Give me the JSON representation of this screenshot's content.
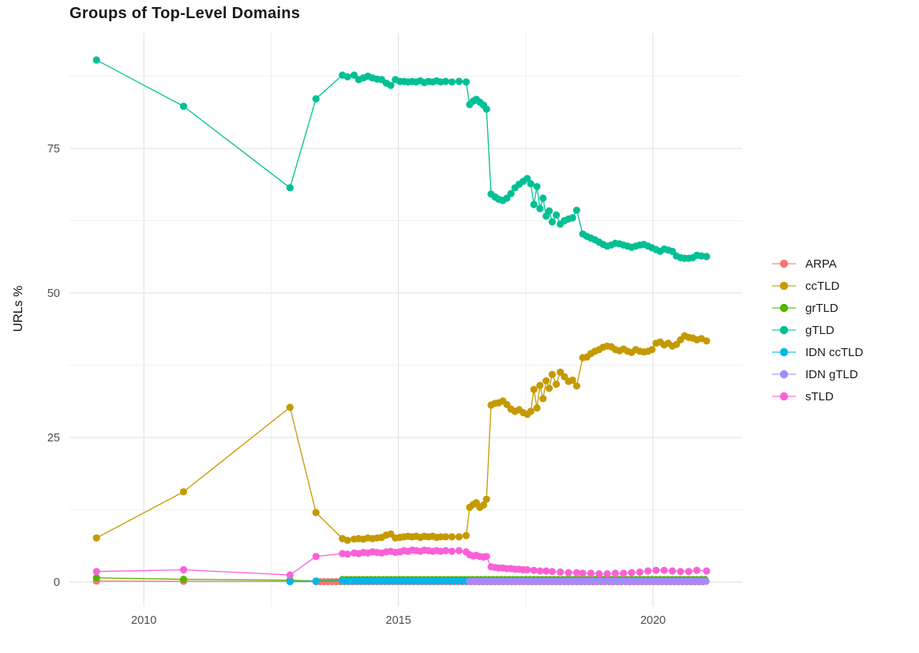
{
  "chart_data": {
    "type": "line",
    "title": "Groups of Top-Level Domains",
    "xlabel": "",
    "ylabel": "URLs %",
    "x_domain": [
      2008.54,
      2021.75
    ],
    "y_domain": [
      -4.24,
      94.95
    ],
    "x_breaks": [
      2010,
      2015,
      2020
    ],
    "x_tick_labels": [
      "2010",
      "2015",
      "2020"
    ],
    "x_minor_breaks": [
      2012.5,
      2017.5
    ],
    "y_breaks": [
      0,
      25,
      50,
      75
    ],
    "y_tick_labels": [
      "0",
      "25",
      "50",
      "75"
    ],
    "y_minor_breaks": [
      12.5,
      37.5,
      62.5,
      87.5
    ],
    "grid": true,
    "legend_position": "right",
    "series": [
      {
        "name": "ARPA",
        "color": "#F8766D",
        "points": [
          [
            2009.07,
            0.15
          ],
          [
            2010.78,
            0.1
          ],
          [
            2012.87,
            0.08
          ]
        ],
        "runs": [
          {
            "from": 2013.38,
            "to": 2021.05,
            "step": 0.08,
            "value": 0.05
          }
        ]
      },
      {
        "name": "ccTLD",
        "color": "#C49A00",
        "points": [
          [
            2009.07,
            7.6
          ],
          [
            2010.78,
            15.6
          ],
          [
            2012.87,
            30.2
          ],
          [
            2013.38,
            12.0
          ],
          [
            2013.9,
            7.5
          ],
          [
            2014.0,
            7.2
          ],
          [
            2014.13,
            7.4
          ],
          [
            2014.22,
            7.5
          ],
          [
            2014.31,
            7.4
          ],
          [
            2014.4,
            7.6
          ],
          [
            2014.49,
            7.5
          ],
          [
            2014.58,
            7.6
          ],
          [
            2014.67,
            7.7
          ],
          [
            2014.76,
            8.1
          ],
          [
            2014.85,
            8.3
          ],
          [
            2014.94,
            7.6
          ],
          [
            2015.03,
            7.7
          ],
          [
            2015.11,
            7.8
          ],
          [
            2015.19,
            7.9
          ],
          [
            2015.27,
            7.8
          ],
          [
            2015.35,
            7.9
          ],
          [
            2015.43,
            7.7
          ],
          [
            2015.51,
            7.9
          ],
          [
            2015.59,
            7.8
          ],
          [
            2015.67,
            7.9
          ],
          [
            2015.75,
            7.7
          ],
          [
            2015.83,
            7.8
          ],
          [
            2015.93,
            7.8
          ],
          [
            2016.05,
            7.8
          ],
          [
            2016.19,
            7.8
          ],
          [
            2016.33,
            8.0
          ],
          [
            2016.4,
            12.9
          ],
          [
            2016.47,
            13.4
          ],
          [
            2016.53,
            13.7
          ],
          [
            2016.6,
            12.9
          ],
          [
            2016.67,
            13.3
          ],
          [
            2016.73,
            14.3
          ],
          [
            2016.82,
            30.6
          ],
          [
            2016.9,
            30.9
          ],
          [
            2016.97,
            31.0
          ],
          [
            2017.05,
            31.3
          ],
          [
            2017.13,
            30.7
          ],
          [
            2017.21,
            29.9
          ],
          [
            2017.29,
            29.5
          ],
          [
            2017.37,
            29.8
          ],
          [
            2017.45,
            29.3
          ],
          [
            2017.53,
            29.0
          ],
          [
            2017.6,
            29.5
          ],
          [
            2017.66,
            33.3
          ],
          [
            2017.72,
            30.1
          ],
          [
            2017.78,
            34.0
          ],
          [
            2017.84,
            31.7
          ],
          [
            2017.9,
            34.8
          ],
          [
            2017.96,
            33.5
          ],
          [
            2018.02,
            35.9
          ],
          [
            2018.1,
            34.2
          ],
          [
            2018.18,
            36.3
          ],
          [
            2018.26,
            35.5
          ],
          [
            2018.34,
            34.7
          ],
          [
            2018.42,
            34.9
          ],
          [
            2018.5,
            33.9
          ],
          [
            2018.62,
            38.8
          ],
          [
            2018.7,
            38.9
          ],
          [
            2018.78,
            39.5
          ],
          [
            2018.86,
            39.9
          ],
          [
            2018.94,
            40.2
          ],
          [
            2019.02,
            40.6
          ],
          [
            2019.1,
            40.8
          ],
          [
            2019.18,
            40.7
          ],
          [
            2019.26,
            40.2
          ],
          [
            2019.34,
            40.0
          ],
          [
            2019.42,
            40.3
          ],
          [
            2019.5,
            39.9
          ],
          [
            2019.58,
            39.7
          ],
          [
            2019.66,
            40.2
          ],
          [
            2019.74,
            39.9
          ],
          [
            2019.82,
            39.8
          ],
          [
            2019.9,
            39.9
          ],
          [
            2019.98,
            40.2
          ],
          [
            2020.06,
            41.3
          ],
          [
            2020.14,
            41.5
          ],
          [
            2020.22,
            41.0
          ],
          [
            2020.3,
            41.3
          ],
          [
            2020.38,
            40.8
          ],
          [
            2020.46,
            41.1
          ],
          [
            2020.54,
            41.9
          ],
          [
            2020.62,
            42.6
          ],
          [
            2020.7,
            42.3
          ],
          [
            2020.78,
            42.2
          ],
          [
            2020.86,
            41.9
          ],
          [
            2020.95,
            42.1
          ],
          [
            2021.05,
            41.7
          ]
        ]
      },
      {
        "name": "grTLD",
        "color": "#53B400",
        "points": [
          [
            2009.07,
            0.7
          ],
          [
            2010.78,
            0.45
          ],
          [
            2012.87,
            0.3
          ],
          [
            2013.38,
            0.15
          ]
        ],
        "runs": [
          {
            "from": 2013.9,
            "to": 2021.05,
            "step": 0.08,
            "value": 0.4
          }
        ]
      },
      {
        "name": "gTLD",
        "color": "#00C094",
        "points": [
          [
            2009.07,
            90.3
          ],
          [
            2010.78,
            82.3
          ],
          [
            2012.87,
            68.2
          ],
          [
            2013.38,
            83.6
          ],
          [
            2013.9,
            87.7
          ],
          [
            2014.0,
            87.4
          ],
          [
            2014.13,
            87.7
          ],
          [
            2014.22,
            86.9
          ],
          [
            2014.31,
            87.2
          ],
          [
            2014.4,
            87.5
          ],
          [
            2014.49,
            87.2
          ],
          [
            2014.58,
            87.0
          ],
          [
            2014.67,
            86.9
          ],
          [
            2014.76,
            86.3
          ],
          [
            2014.85,
            85.9
          ],
          [
            2014.94,
            86.9
          ],
          [
            2015.03,
            86.6
          ],
          [
            2015.11,
            86.6
          ],
          [
            2015.19,
            86.5
          ],
          [
            2015.27,
            86.6
          ],
          [
            2015.35,
            86.5
          ],
          [
            2015.43,
            86.7
          ],
          [
            2015.51,
            86.4
          ],
          [
            2015.59,
            86.6
          ],
          [
            2015.67,
            86.5
          ],
          [
            2015.75,
            86.7
          ],
          [
            2015.83,
            86.5
          ],
          [
            2015.93,
            86.6
          ],
          [
            2016.05,
            86.5
          ],
          [
            2016.19,
            86.6
          ],
          [
            2016.33,
            86.5
          ],
          [
            2016.4,
            82.6
          ],
          [
            2016.47,
            83.2
          ],
          [
            2016.53,
            83.5
          ],
          [
            2016.6,
            83.0
          ],
          [
            2016.67,
            82.5
          ],
          [
            2016.73,
            81.8
          ],
          [
            2016.82,
            67.1
          ],
          [
            2016.9,
            66.6
          ],
          [
            2016.97,
            66.2
          ],
          [
            2017.05,
            66.0
          ],
          [
            2017.13,
            66.4
          ],
          [
            2017.21,
            67.2
          ],
          [
            2017.29,
            68.2
          ],
          [
            2017.37,
            68.8
          ],
          [
            2017.45,
            69.3
          ],
          [
            2017.53,
            69.8
          ],
          [
            2017.6,
            68.9
          ],
          [
            2017.66,
            65.3
          ],
          [
            2017.72,
            68.4
          ],
          [
            2017.78,
            64.6
          ],
          [
            2017.84,
            66.4
          ],
          [
            2017.9,
            63.3
          ],
          [
            2017.96,
            64.2
          ],
          [
            2018.02,
            62.3
          ],
          [
            2018.1,
            63.5
          ],
          [
            2018.18,
            61.9
          ],
          [
            2018.26,
            62.5
          ],
          [
            2018.34,
            62.8
          ],
          [
            2018.42,
            63.0
          ],
          [
            2018.5,
            64.3
          ],
          [
            2018.62,
            60.2
          ],
          [
            2018.7,
            59.8
          ],
          [
            2018.78,
            59.5
          ],
          [
            2018.86,
            59.2
          ],
          [
            2018.94,
            58.8
          ],
          [
            2019.02,
            58.4
          ],
          [
            2019.1,
            58.1
          ],
          [
            2019.18,
            58.3
          ],
          [
            2019.26,
            58.6
          ],
          [
            2019.34,
            58.5
          ],
          [
            2019.42,
            58.3
          ],
          [
            2019.5,
            58.1
          ],
          [
            2019.58,
            57.9
          ],
          [
            2019.66,
            58.1
          ],
          [
            2019.74,
            58.3
          ],
          [
            2019.82,
            58.4
          ],
          [
            2019.9,
            58.1
          ],
          [
            2019.98,
            57.8
          ],
          [
            2020.06,
            57.5
          ],
          [
            2020.14,
            57.2
          ],
          [
            2020.22,
            57.6
          ],
          [
            2020.3,
            57.4
          ],
          [
            2020.38,
            57.2
          ],
          [
            2020.46,
            56.4
          ],
          [
            2020.54,
            56.1
          ],
          [
            2020.62,
            56.0
          ],
          [
            2020.7,
            56.0
          ],
          [
            2020.78,
            56.1
          ],
          [
            2020.86,
            56.5
          ],
          [
            2020.95,
            56.4
          ],
          [
            2021.05,
            56.3
          ]
        ]
      },
      {
        "name": "IDN ccTLD",
        "color": "#00B6EB",
        "points": [
          [
            2012.87,
            0.05
          ],
          [
            2013.38,
            0.1
          ]
        ],
        "runs": [
          {
            "from": 2013.9,
            "to": 2021.05,
            "step": 0.08,
            "value": 0.15
          }
        ]
      },
      {
        "name": "IDN gTLD",
        "color": "#A58AFF",
        "points": [],
        "runs": [
          {
            "from": 2016.4,
            "to": 2021.05,
            "step": 0.08,
            "value": 0.1
          }
        ]
      },
      {
        "name": "sTLD",
        "color": "#FB61D7",
        "points": [
          [
            2009.07,
            1.8
          ],
          [
            2010.78,
            2.1
          ],
          [
            2012.87,
            1.2
          ],
          [
            2013.38,
            4.4
          ],
          [
            2013.9,
            4.9
          ],
          [
            2014.0,
            4.8
          ],
          [
            2014.13,
            5.0
          ],
          [
            2014.22,
            4.9
          ],
          [
            2014.31,
            5.1
          ],
          [
            2014.4,
            5.0
          ],
          [
            2014.49,
            5.2
          ],
          [
            2014.58,
            5.1
          ],
          [
            2014.67,
            5.0
          ],
          [
            2014.76,
            5.2
          ],
          [
            2014.85,
            5.3
          ],
          [
            2014.94,
            5.1
          ],
          [
            2015.03,
            5.2
          ],
          [
            2015.11,
            5.4
          ],
          [
            2015.19,
            5.3
          ],
          [
            2015.27,
            5.5
          ],
          [
            2015.35,
            5.4
          ],
          [
            2015.43,
            5.3
          ],
          [
            2015.51,
            5.5
          ],
          [
            2015.59,
            5.4
          ],
          [
            2015.67,
            5.3
          ],
          [
            2015.75,
            5.4
          ],
          [
            2015.83,
            5.3
          ],
          [
            2015.93,
            5.4
          ],
          [
            2016.05,
            5.3
          ],
          [
            2016.19,
            5.4
          ],
          [
            2016.33,
            5.2
          ],
          [
            2016.4,
            4.7
          ],
          [
            2016.47,
            4.5
          ],
          [
            2016.53,
            4.6
          ],
          [
            2016.6,
            4.4
          ],
          [
            2016.67,
            4.3
          ],
          [
            2016.73,
            4.4
          ],
          [
            2016.82,
            2.6
          ],
          [
            2016.9,
            2.5
          ],
          [
            2016.97,
            2.4
          ],
          [
            2017.05,
            2.4
          ],
          [
            2017.13,
            2.3
          ],
          [
            2017.21,
            2.3
          ],
          [
            2017.29,
            2.2
          ],
          [
            2017.37,
            2.2
          ],
          [
            2017.45,
            2.1
          ],
          [
            2017.53,
            2.1
          ],
          [
            2017.66,
            2.0
          ],
          [
            2017.78,
            1.9
          ],
          [
            2017.9,
            1.9
          ],
          [
            2018.02,
            1.8
          ],
          [
            2018.18,
            1.7
          ],
          [
            2018.34,
            1.6
          ],
          [
            2018.5,
            1.6
          ],
          [
            2018.62,
            1.5
          ],
          [
            2018.78,
            1.5
          ],
          [
            2018.94,
            1.4
          ],
          [
            2019.1,
            1.4
          ],
          [
            2019.26,
            1.5
          ],
          [
            2019.42,
            1.5
          ],
          [
            2019.58,
            1.6
          ],
          [
            2019.74,
            1.7
          ],
          [
            2019.9,
            1.9
          ],
          [
            2020.06,
            2.0
          ],
          [
            2020.22,
            2.0
          ],
          [
            2020.38,
            1.9
          ],
          [
            2020.54,
            1.8
          ],
          [
            2020.7,
            1.8
          ],
          [
            2020.86,
            2.0
          ],
          [
            2021.05,
            1.9
          ]
        ]
      }
    ],
    "style": {
      "grid_major_color": "#E4E4E4",
      "grid_minor_color": "#F0F0F0",
      "tick_label_color": "#4D4D4D",
      "legend_text_color": "#1A1A1A",
      "point_radius": 4.6,
      "line_width": 1.3
    }
  }
}
